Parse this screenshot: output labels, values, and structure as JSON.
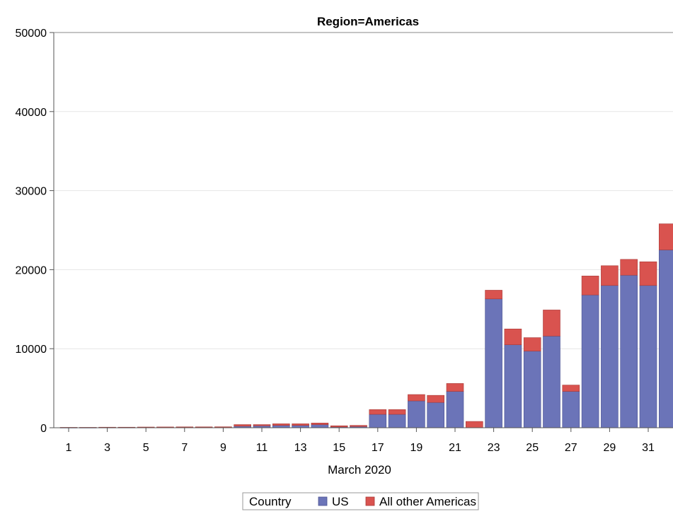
{
  "chart_data": {
    "type": "bar",
    "stacked": true,
    "title": "Region=Americas",
    "xlabel": "March 2020",
    "ylabel": "",
    "ylim": [
      0,
      50000
    ],
    "yticks": [
      "0",
      "10000",
      "20000",
      "30000",
      "40000",
      "50000"
    ],
    "categories": [
      1,
      2,
      3,
      4,
      5,
      6,
      7,
      8,
      9,
      10,
      11,
      12,
      13,
      14,
      15,
      16,
      17,
      18,
      19,
      20,
      21,
      22,
      23,
      24,
      25,
      26,
      27,
      28,
      29,
      30,
      31,
      32
    ],
    "xtick_labels": [
      "1",
      "3",
      "5",
      "7",
      "9",
      "11",
      "13",
      "15",
      "17",
      "19",
      "21",
      "23",
      "25",
      "27",
      "29",
      "31"
    ],
    "grid": true,
    "legend": {
      "title": "Country",
      "placement": "bottom"
    },
    "series": [
      {
        "name": "US",
        "color": "#6b74b8",
        "values": [
          10,
          10,
          20,
          20,
          30,
          30,
          40,
          40,
          40,
          200,
          250,
          300,
          300,
          400,
          100,
          150,
          1700,
          1700,
          3400,
          3200,
          4600,
          0,
          16300,
          10500,
          9700,
          11600,
          4600,
          16800,
          18000,
          19300,
          18000,
          22500
        ]
      },
      {
        "name": "All other Americas",
        "color": "#d9534f",
        "values": [
          40,
          40,
          50,
          50,
          60,
          70,
          70,
          70,
          80,
          200,
          150,
          200,
          200,
          200,
          150,
          150,
          600,
          600,
          800,
          900,
          1000,
          800,
          1100,
          2000,
          1700,
          3300,
          800,
          2400,
          2500,
          2000,
          3000,
          3300
        ]
      }
    ]
  }
}
